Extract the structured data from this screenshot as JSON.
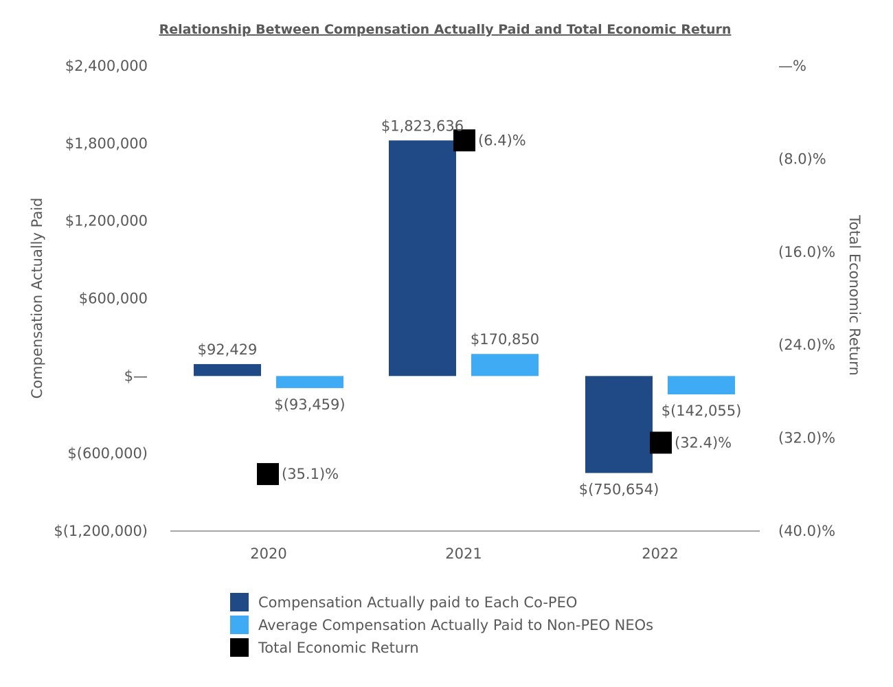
{
  "chart_data": {
    "type": "bar",
    "title": "Relationship Between Compensation Actually Paid and Total Economic Return",
    "categories": [
      "2020",
      "2021",
      "2022"
    ],
    "ylabel": "Compensation Actually Paid",
    "y2label": "Total Economic Return",
    "ylim": [
      -1200000,
      2400000
    ],
    "y2lim": [
      -40.0,
      0.0
    ],
    "yticks": [
      2400000,
      1800000,
      1200000,
      600000,
      0,
      -600000,
      -1200000
    ],
    "ytick_labels": [
      "$2,400,000",
      "$1,800,000",
      "$1,200,000",
      "$600,000",
      "$—",
      "$(600,000)",
      "$(1,200,000)"
    ],
    "y2ticks": [
      0,
      -8,
      -16,
      -24,
      -32,
      -40
    ],
    "y2tick_labels": [
      "—%",
      "(8.0)%",
      "(16.0)%",
      "(24.0)%",
      "(32.0)%",
      "(40.0)%"
    ],
    "grid": false,
    "legend_position": "bottom",
    "series": [
      {
        "name": "Compensation Actually paid to Each Co-PEO",
        "type": "bar",
        "axis": "left",
        "color": "#1f4a86",
        "values": [
          92429,
          1823636,
          -750654
        ],
        "labels": [
          "$92,429",
          "$1,823,636",
          "$(750,654)"
        ]
      },
      {
        "name": "Average Compensation Actually Paid to Non-PEO NEOs",
        "type": "bar",
        "axis": "left",
        "color": "#3fabf5",
        "values": [
          -93459,
          170850,
          -142055
        ],
        "labels": [
          "$(93,459)",
          "$170,850",
          "$(142,055)"
        ]
      },
      {
        "name": "Total Economic Return",
        "type": "marker",
        "axis": "right",
        "color": "#000000",
        "values": [
          -35.1,
          -6.4,
          -32.4
        ],
        "labels": [
          "(35.1)%",
          "(6.4)%",
          "(32.4)%"
        ]
      }
    ]
  }
}
